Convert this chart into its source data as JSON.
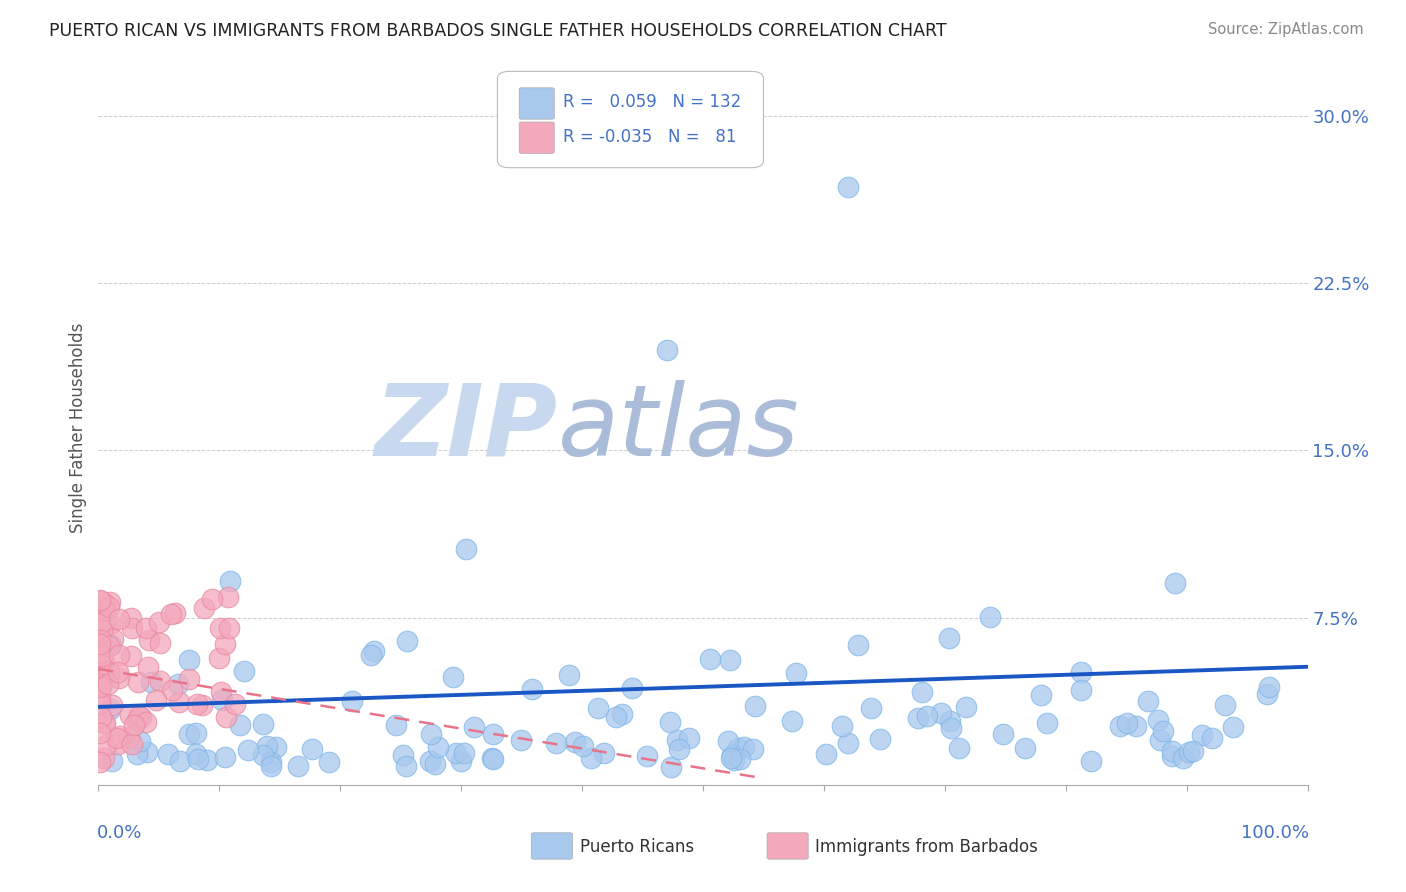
{
  "title": "PUERTO RICAN VS IMMIGRANTS FROM BARBADOS SINGLE FATHER HOUSEHOLDS CORRELATION CHART",
  "source": "Source: ZipAtlas.com",
  "ylabel": "Single Father Households",
  "xlim": [
    0.0,
    1.0
  ],
  "ylim": [
    0.0,
    0.32
  ],
  "yticks": [
    0.0,
    0.075,
    0.15,
    0.225,
    0.3
  ],
  "ytick_labels": [
    "",
    "7.5%",
    "15.0%",
    "22.5%",
    "30.0%"
  ],
  "blue_R": 0.059,
  "blue_N": 132,
  "pink_R": -0.035,
  "pink_N": 81,
  "blue_color": "#A8C8EE",
  "pink_color": "#F4A8BC",
  "blue_edge_color": "#7EB6E8",
  "pink_edge_color": "#E888A0",
  "trend_blue_color": "#1A56C4",
  "trend_pink_color": "#E8748A",
  "title_color": "#222222",
  "axis_label_color": "#4472C4",
  "grid_color": "#AAAAAA",
  "background_color": "#FFFFFF",
  "watermark_zip": "ZIP",
  "watermark_atlas": "atlas",
  "watermark_color_zip": "#C8D8EE",
  "watermark_color_atlas": "#AABCD8",
  "blue_trend_x": [
    0.0,
    1.0
  ],
  "blue_trend_y": [
    0.035,
    0.053
  ],
  "pink_trend_x": [
    0.0,
    0.55
  ],
  "pink_trend_y": [
    0.052,
    0.003
  ]
}
